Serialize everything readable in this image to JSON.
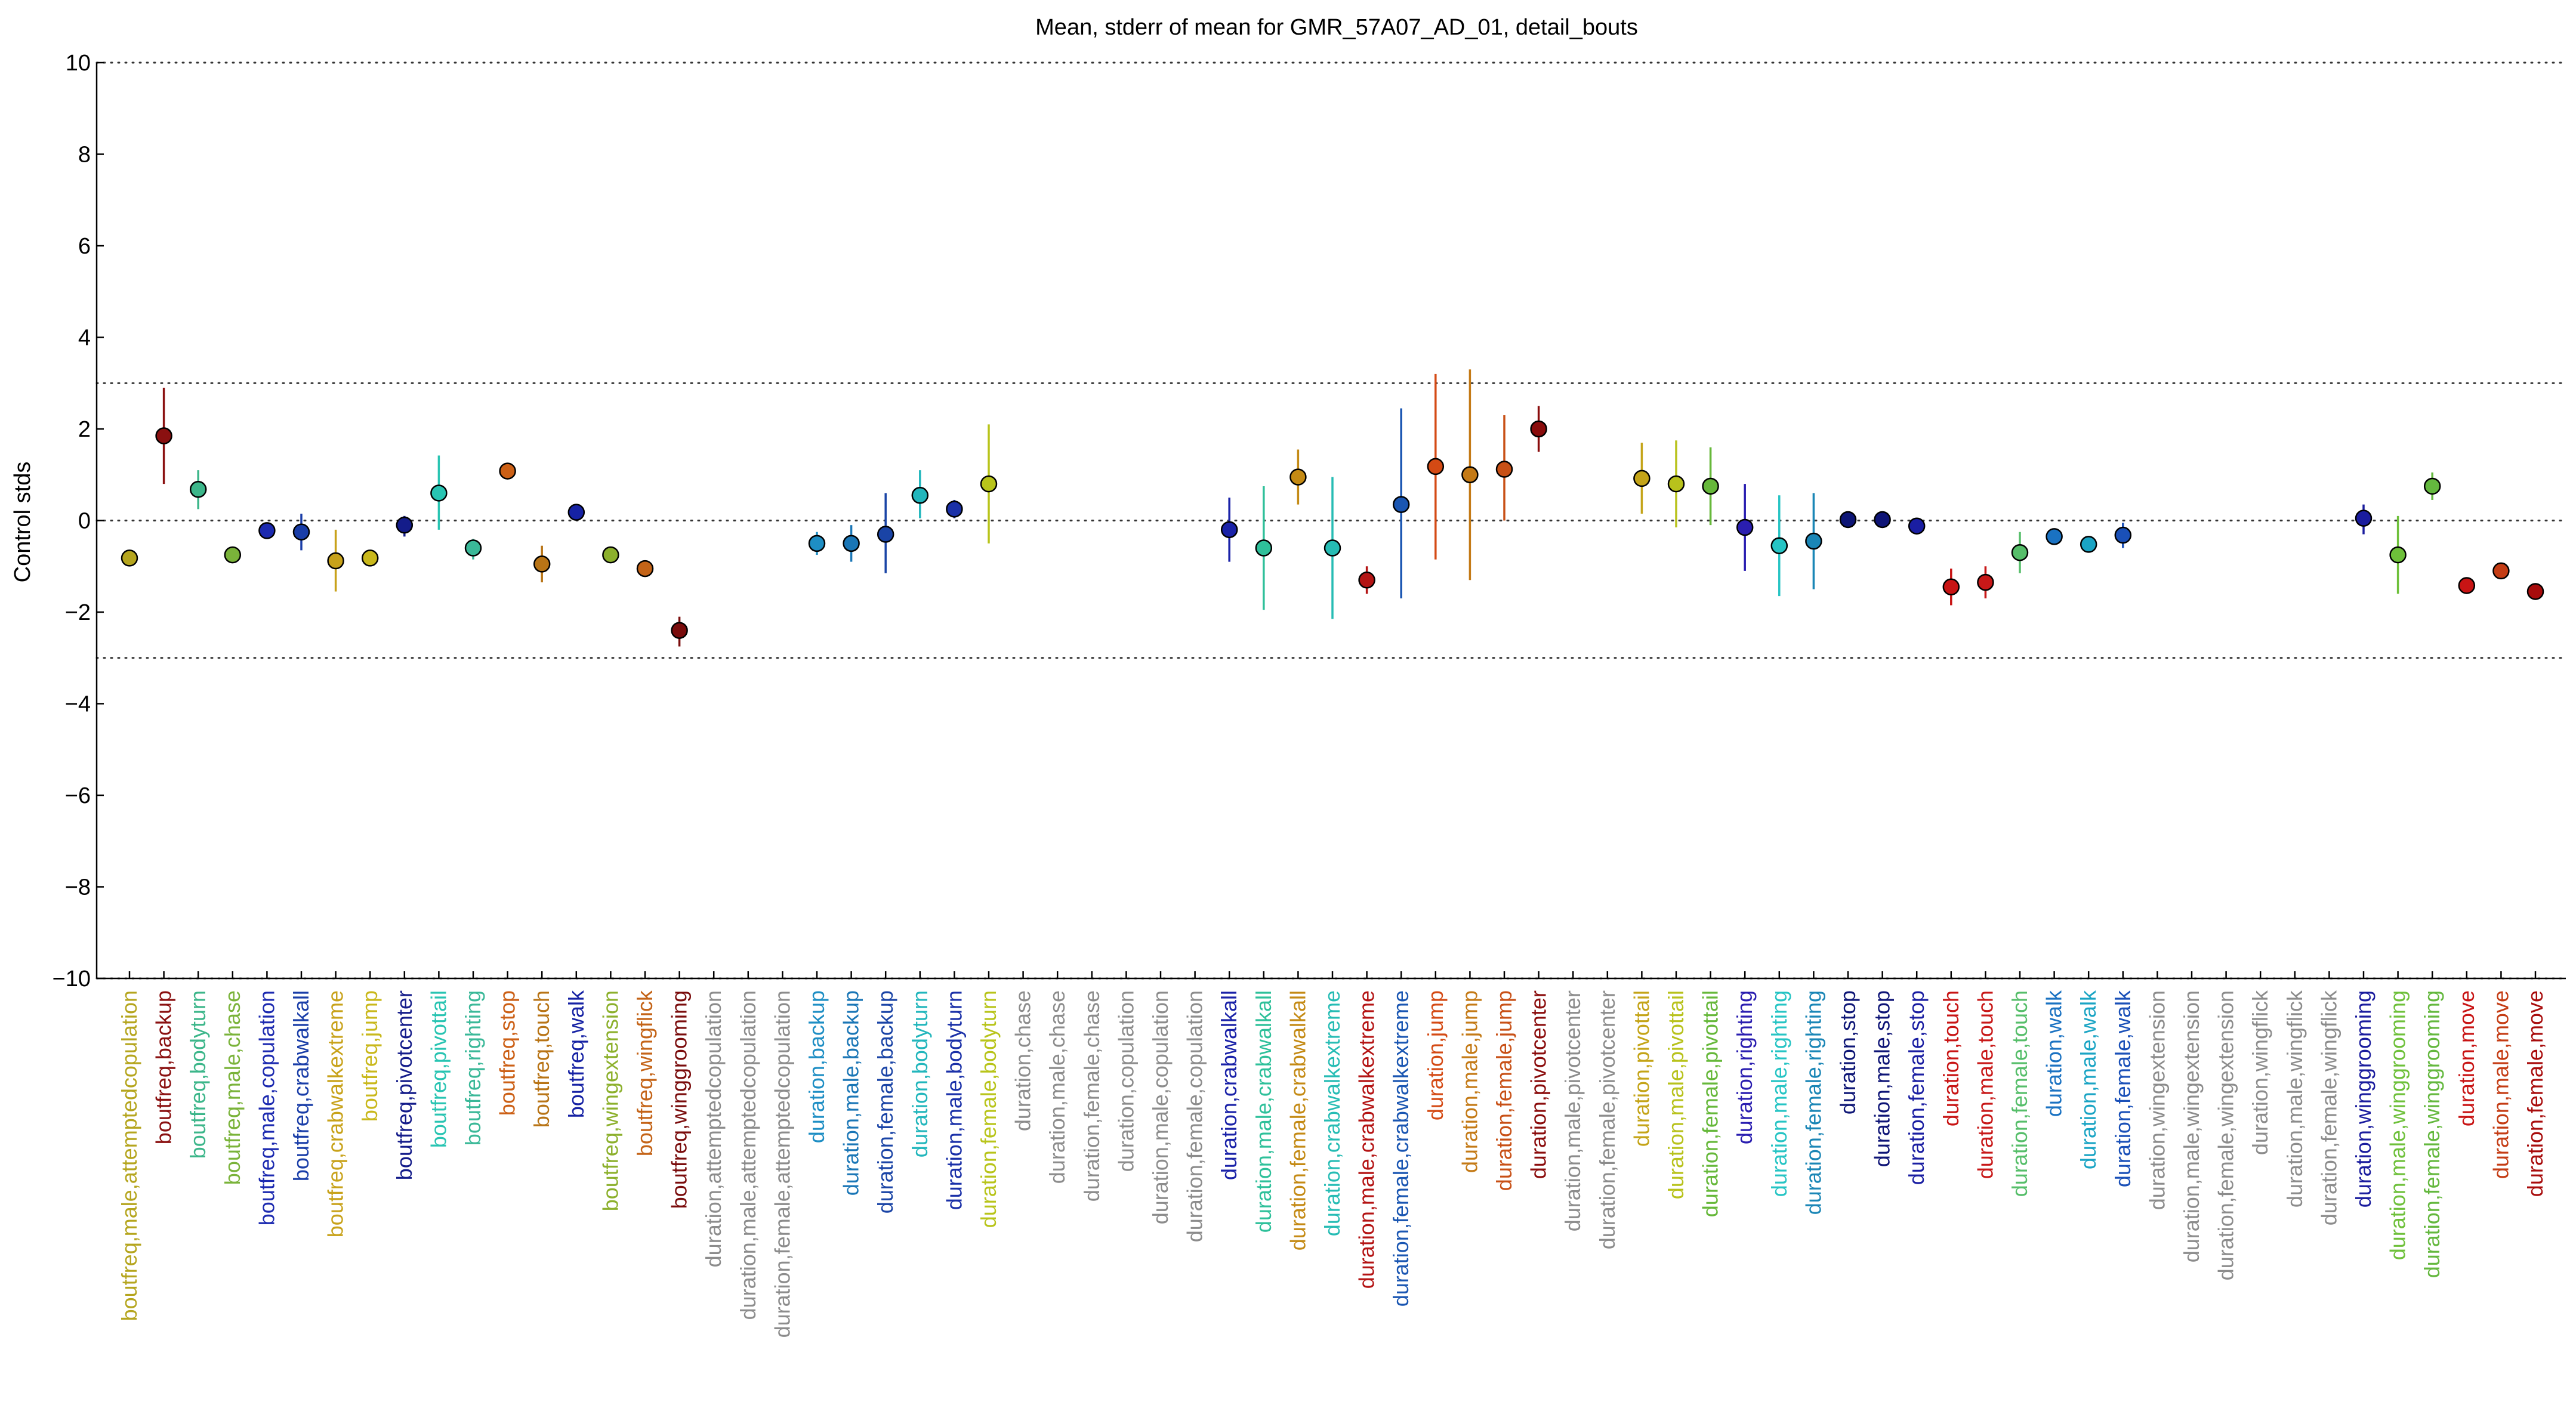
{
  "chart_data": {
    "type": "scatter",
    "title": "Mean, stderr of mean for GMR_57A07_AD_01, detail_bouts",
    "xlabel": "",
    "ylabel": "Control stds",
    "ylim": [
      -10,
      10
    ],
    "yticks": [
      "10",
      "8",
      "6",
      "4",
      "2",
      "0",
      "−2",
      "−4",
      "−6",
      "−8",
      "−10"
    ],
    "reference_lines": [
      10,
      3,
      0,
      -3,
      -10
    ],
    "grid": false,
    "legend": "none",
    "points": [
      {
        "label": "boutfreq,male,attemptedcopulation",
        "mean": -0.82,
        "lo": -0.82,
        "hi": -0.82,
        "color": "#b5a51e"
      },
      {
        "label": "boutfreq,backup",
        "mean": 1.85,
        "lo": 0.8,
        "hi": 2.9,
        "color": "#8a1010"
      },
      {
        "label": "boutfreq,bodyturn",
        "mean": 0.68,
        "lo": 0.25,
        "hi": 1.1,
        "color": "#3cb68a"
      },
      {
        "label": "boutfreq,male,chase",
        "mean": -0.75,
        "lo": -0.75,
        "hi": -0.75,
        "color": "#7ab33a"
      },
      {
        "label": "boutfreq,male,copulation",
        "mean": -0.22,
        "lo": -0.22,
        "hi": -0.22,
        "color": "#1c2ab0"
      },
      {
        "label": "boutfreq,crabwalkall",
        "mean": -0.25,
        "lo": -0.65,
        "hi": 0.15,
        "color": "#1a3ea8"
      },
      {
        "label": "boutfreq,crabwalkextreme",
        "mean": -0.88,
        "lo": -1.55,
        "hi": -0.2,
        "color": "#c8a21a"
      },
      {
        "label": "boutfreq,jump",
        "mean": -0.82,
        "lo": -0.82,
        "hi": -0.82,
        "color": "#c9b81c"
      },
      {
        "label": "boutfreq,pivotcenter",
        "mean": -0.1,
        "lo": -0.35,
        "hi": 0.1,
        "color": "#141c8a"
      },
      {
        "label": "boutfreq,pivottail",
        "mean": 0.6,
        "lo": -0.2,
        "hi": 1.42,
        "color": "#28c4b2"
      },
      {
        "label": "boutfreq,righting",
        "mean": -0.6,
        "lo": -0.85,
        "hi": -0.4,
        "color": "#3ab898"
      },
      {
        "label": "boutfreq,stop",
        "mean": 1.08,
        "lo": 1.08,
        "hi": 1.08,
        "color": "#cc6016"
      },
      {
        "label": "boutfreq,touch",
        "mean": -0.95,
        "lo": -1.35,
        "hi": -0.55,
        "color": "#b87416"
      },
      {
        "label": "boutfreq,walk",
        "mean": 0.18,
        "lo": 0.18,
        "hi": 0.18,
        "color": "#1622a4"
      },
      {
        "label": "boutfreq,wingextension",
        "mean": -0.75,
        "lo": -0.75,
        "hi": -0.75,
        "color": "#8cb02c"
      },
      {
        "label": "boutfreq,wingflick",
        "mean": -1.05,
        "lo": -1.05,
        "hi": -1.05,
        "color": "#c46418"
      },
      {
        "label": "boutfreq,winggrooming",
        "mean": -2.4,
        "lo": -2.75,
        "hi": -2.1,
        "color": "#7a0c0c"
      },
      {
        "label": "duration,attemptedcopulation",
        "mean": null,
        "lo": null,
        "hi": null,
        "color": "#8c8c8c"
      },
      {
        "label": "duration,male,attemptedcopulation",
        "mean": null,
        "lo": null,
        "hi": null,
        "color": "#8c8c8c"
      },
      {
        "label": "duration,female,attemptedcopulation",
        "mean": null,
        "lo": null,
        "hi": null,
        "color": "#8c8c8c"
      },
      {
        "label": "duration,backup",
        "mean": -0.5,
        "lo": -0.75,
        "hi": -0.25,
        "color": "#1e8ec4"
      },
      {
        "label": "duration,male,backup",
        "mean": -0.5,
        "lo": -0.9,
        "hi": -0.1,
        "color": "#1a76b6"
      },
      {
        "label": "duration,female,backup",
        "mean": -0.3,
        "lo": -1.15,
        "hi": 0.6,
        "color": "#1a44a6"
      },
      {
        "label": "duration,bodyturn",
        "mean": 0.55,
        "lo": 0.05,
        "hi": 1.1,
        "color": "#22b6bc"
      },
      {
        "label": "duration,male,bodyturn",
        "mean": 0.25,
        "lo": 0.05,
        "hi": 0.45,
        "color": "#1a30a8"
      },
      {
        "label": "duration,female,bodyturn",
        "mean": 0.8,
        "lo": -0.5,
        "hi": 2.1,
        "color": "#b8c41a"
      },
      {
        "label": "duration,chase",
        "mean": null,
        "lo": null,
        "hi": null,
        "color": "#8c8c8c"
      },
      {
        "label": "duration,male,chase",
        "mean": null,
        "lo": null,
        "hi": null,
        "color": "#8c8c8c"
      },
      {
        "label": "duration,female,chase",
        "mean": null,
        "lo": null,
        "hi": null,
        "color": "#8c8c8c"
      },
      {
        "label": "duration,copulation",
        "mean": null,
        "lo": null,
        "hi": null,
        "color": "#8c8c8c"
      },
      {
        "label": "duration,male,copulation",
        "mean": null,
        "lo": null,
        "hi": null,
        "color": "#8c8c8c"
      },
      {
        "label": "duration,female,copulation",
        "mean": null,
        "lo": null,
        "hi": null,
        "color": "#8c8c8c"
      },
      {
        "label": "duration,crabwalkall",
        "mean": -0.2,
        "lo": -0.9,
        "hi": 0.5,
        "color": "#1a22a8"
      },
      {
        "label": "duration,male,crabwalkall",
        "mean": -0.6,
        "lo": -1.95,
        "hi": 0.75,
        "color": "#2ec09a"
      },
      {
        "label": "duration,female,crabwalkall",
        "mean": 0.95,
        "lo": 0.35,
        "hi": 1.55,
        "color": "#c48a14"
      },
      {
        "label": "duration,crabwalkextreme",
        "mean": -0.6,
        "lo": -2.15,
        "hi": 0.95,
        "color": "#26bcb4"
      },
      {
        "label": "duration,male,crabwalkextreme",
        "mean": -1.3,
        "lo": -1.6,
        "hi": -1.0,
        "color": "#b41414"
      },
      {
        "label": "duration,female,crabwalkextreme",
        "mean": 0.35,
        "lo": -1.7,
        "hi": 2.45,
        "color": "#1a56b2"
      },
      {
        "label": "duration,jump",
        "mean": 1.18,
        "lo": -0.85,
        "hi": 3.2,
        "color": "#d44a14"
      },
      {
        "label": "duration,male,jump",
        "mean": 1.0,
        "lo": -1.3,
        "hi": 3.3,
        "color": "#c47a16"
      },
      {
        "label": "duration,female,jump",
        "mean": 1.12,
        "lo": 0.0,
        "hi": 2.3,
        "color": "#c85016"
      },
      {
        "label": "duration,pivotcenter",
        "mean": 2.0,
        "lo": 1.5,
        "hi": 2.5,
        "color": "#8a0c0c"
      },
      {
        "label": "duration,male,pivotcenter",
        "mean": null,
        "lo": null,
        "hi": null,
        "color": "#8c8c8c"
      },
      {
        "label": "duration,female,pivotcenter",
        "mean": null,
        "lo": null,
        "hi": null,
        "color": "#8c8c8c"
      },
      {
        "label": "duration,pivottail",
        "mean": 0.92,
        "lo": 0.15,
        "hi": 1.7,
        "color": "#c4a418"
      },
      {
        "label": "duration,male,pivottail",
        "mean": 0.8,
        "lo": -0.15,
        "hi": 1.75,
        "color": "#b8c21c"
      },
      {
        "label": "duration,female,pivottail",
        "mean": 0.75,
        "lo": -0.1,
        "hi": 1.6,
        "color": "#66b83a"
      },
      {
        "label": "duration,righting",
        "mean": -0.15,
        "lo": -1.1,
        "hi": 0.8,
        "color": "#2a1eb0"
      },
      {
        "label": "duration,male,righting",
        "mean": -0.55,
        "lo": -1.65,
        "hi": 0.55,
        "color": "#26c4c4"
      },
      {
        "label": "duration,female,righting",
        "mean": -0.45,
        "lo": -1.5,
        "hi": 0.6,
        "color": "#1a86b6"
      },
      {
        "label": "duration,stop",
        "mean": 0.02,
        "lo": 0.02,
        "hi": 0.02,
        "color": "#0e1676"
      },
      {
        "label": "duration,male,stop",
        "mean": 0.02,
        "lo": 0.02,
        "hi": 0.02,
        "color": "#0e1476"
      },
      {
        "label": "duration,female,stop",
        "mean": -0.12,
        "lo": -0.3,
        "hi": 0.05,
        "color": "#1a1ea2"
      },
      {
        "label": "duration,touch",
        "mean": -1.45,
        "lo": -1.85,
        "hi": -1.05,
        "color": "#c81414"
      },
      {
        "label": "duration,male,touch",
        "mean": -1.35,
        "lo": -1.7,
        "hi": -1.0,
        "color": "#c81818"
      },
      {
        "label": "duration,female,touch",
        "mean": -0.7,
        "lo": -1.15,
        "hi": -0.25,
        "color": "#56be6a"
      },
      {
        "label": "duration,walk",
        "mean": -0.35,
        "lo": -0.35,
        "hi": -0.35,
        "color": "#1a72c2"
      },
      {
        "label": "duration,male,walk",
        "mean": -0.52,
        "lo": -0.52,
        "hi": -0.52,
        "color": "#1aa4c4"
      },
      {
        "label": "duration,female,walk",
        "mean": -0.32,
        "lo": -0.6,
        "hi": -0.05,
        "color": "#1a50b8"
      },
      {
        "label": "duration,wingextension",
        "mean": null,
        "lo": null,
        "hi": null,
        "color": "#8c8c8c"
      },
      {
        "label": "duration,male,wingextension",
        "mean": null,
        "lo": null,
        "hi": null,
        "color": "#8c8c8c"
      },
      {
        "label": "duration,female,wingextension",
        "mean": null,
        "lo": null,
        "hi": null,
        "color": "#8c8c8c"
      },
      {
        "label": "duration,wingflick",
        "mean": null,
        "lo": null,
        "hi": null,
        "color": "#8c8c8c"
      },
      {
        "label": "duration,male,wingflick",
        "mean": null,
        "lo": null,
        "hi": null,
        "color": "#8c8c8c"
      },
      {
        "label": "duration,female,wingflick",
        "mean": null,
        "lo": null,
        "hi": null,
        "color": "#8c8c8c"
      },
      {
        "label": "duration,winggrooming",
        "mean": 0.05,
        "lo": -0.3,
        "hi": 0.35,
        "color": "#1a1c9e"
      },
      {
        "label": "duration,male,winggrooming",
        "mean": -0.75,
        "lo": -1.6,
        "hi": 0.1,
        "color": "#6ec03a"
      },
      {
        "label": "duration,female,winggrooming",
        "mean": 0.75,
        "lo": 0.45,
        "hi": 1.05,
        "color": "#64b83e"
      },
      {
        "label": "duration,move",
        "mean": -1.42,
        "lo": -1.42,
        "hi": -1.42,
        "color": "#c81414"
      },
      {
        "label": "duration,male,move",
        "mean": -1.1,
        "lo": -1.1,
        "hi": -1.1,
        "color": "#c43c14"
      },
      {
        "label": "duration,female,move",
        "mean": -1.55,
        "lo": -1.55,
        "hi": -1.55,
        "color": "#a80c0c"
      }
    ]
  }
}
